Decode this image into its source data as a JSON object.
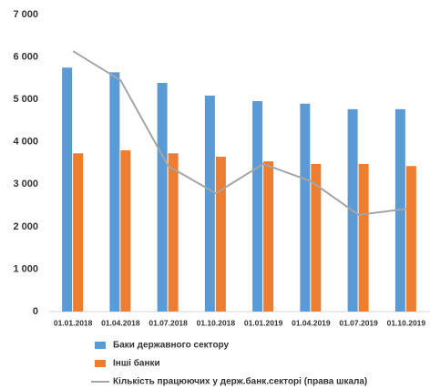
{
  "chart_data": {
    "type": "bar_line",
    "categories": [
      "01.01.2018",
      "01.04.2018",
      "01.07.2018",
      "01.10.2018",
      "01.01.2019",
      "01.04.2019",
      "01.07.2019",
      "01.10.2019"
    ],
    "series": [
      {
        "name": "Баки державного сектору",
        "color": "#5b9bd5",
        "kind": "bar",
        "values": [
          5750,
          5640,
          5390,
          5090,
          4960,
          4900,
          4770,
          4770
        ]
      },
      {
        "name": "Інші банки",
        "color": "#ed7d31",
        "kind": "bar",
        "values": [
          3730,
          3800,
          3730,
          3650,
          3540,
          3480,
          3480,
          3430
        ]
      },
      {
        "name": "Кількість працюючих у держ.банк.секторі (права шкала)",
        "color": "#a5a5a5",
        "kind": "line",
        "values": [
          6140,
          5450,
          3430,
          2790,
          3480,
          3070,
          2280,
          2420
        ]
      }
    ],
    "ylim": [
      0,
      7000
    ],
    "yticks": [
      0,
      {
        "value": 1000,
        "label": "1 000"
      },
      {
        "value": 2000,
        "label": "2 000"
      },
      {
        "value": 3000,
        "label": "3 000"
      },
      {
        "value": 4000,
        "label": "4 000"
      },
      {
        "value": 5000,
        "label": "5 000"
      },
      {
        "value": 6000,
        "label": "6 000"
      },
      {
        "value": 7000,
        "label": "7 000"
      }
    ],
    "grid": false
  }
}
